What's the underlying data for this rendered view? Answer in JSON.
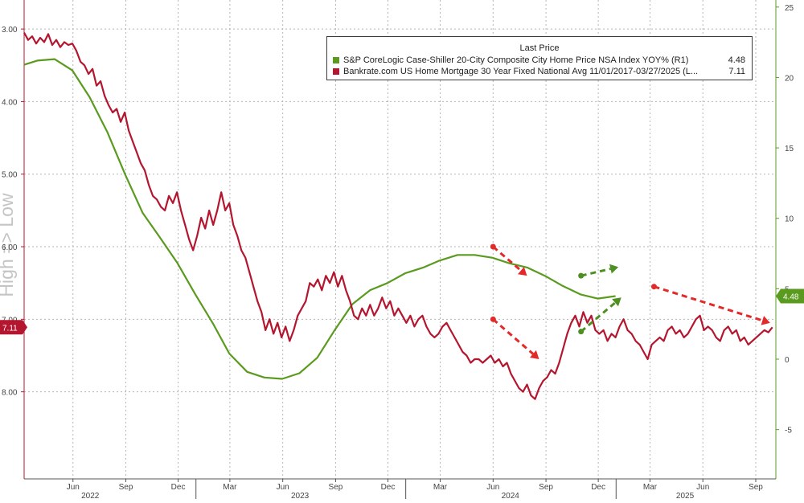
{
  "colors": {
    "green": "#5a9b1f",
    "red": "#b3162e",
    "axis_right": "#5a9b1f",
    "axis_left": "#b3162e",
    "grid": "#b5b5b5",
    "arrow_red": "#e32a2a",
    "arrow_green": "#4e8f22"
  },
  "watermark": "High => Low",
  "legend": {
    "header": "Last Price",
    "items": [
      {
        "name": "S&P CoreLogic Case-Shiller 20-City Composite City Home Price NSA Index YOY%  (R1)",
        "value": "4.48"
      },
      {
        "name": "Bankrate.com US Home Mortgage 30 Year Fixed National Avg 11/01/2017-03/27/2025    (L...",
        "value": "7.11"
      }
    ]
  },
  "chart_data": {
    "type": "line",
    "x_ticks": [
      {
        "date": "2022-06-01",
        "label": "Jun"
      },
      {
        "date": "2022-09-01",
        "label": "Sep"
      },
      {
        "date": "2022-12-01",
        "label": "Dec"
      },
      {
        "date": "2023-03-01",
        "label": "Mar"
      },
      {
        "date": "2023-06-01",
        "label": "Jun"
      },
      {
        "date": "2023-09-01",
        "label": "Sep"
      },
      {
        "date": "2023-12-01",
        "label": "Dec"
      },
      {
        "date": "2024-03-01",
        "label": "Mar"
      },
      {
        "date": "2024-06-01",
        "label": "Jun"
      },
      {
        "date": "2024-09-01",
        "label": "Sep"
      },
      {
        "date": "2024-12-01",
        "label": "Dec"
      },
      {
        "date": "2025-03-01",
        "label": "Mar"
      },
      {
        "date": "2025-06-01",
        "label": "Jun"
      },
      {
        "date": "2025-09-01",
        "label": "Sep"
      }
    ],
    "year_labels": [
      {
        "date": "2022-07-01",
        "label": "2022"
      },
      {
        "date": "2023-07-01",
        "label": "2023"
      },
      {
        "date": "2024-07-01",
        "label": "2024"
      },
      {
        "date": "2025-05-01",
        "label": "2025"
      }
    ],
    "year_separators": [
      "2023-01-01",
      "2024-01-01",
      "2025-01-01"
    ],
    "xlim": [
      "2022-03-08",
      "2025-10-06"
    ],
    "left_axis": {
      "inverted": true,
      "ylim": [
        2.6,
        9.2
      ],
      "ticks": [
        3,
        4,
        5,
        6,
        7,
        8
      ],
      "tick_labels": [
        "3.00",
        "4.00",
        "5.00",
        "6.00",
        "7.00",
        "8.00"
      ],
      "last_value_label": "7.11",
      "last_value": 7.11
    },
    "right_axis": {
      "ylim": [
        -8.5,
        25.5
      ],
      "ticks": [
        -5,
        0,
        5,
        10,
        15,
        20,
        25
      ],
      "tick_labels": [
        "-5",
        "0",
        "5",
        "10",
        "15",
        "20",
        "25"
      ],
      "last_value_label": "4.48",
      "last_value": 4.48
    },
    "series": [
      {
        "name": "S&P CoreLogic Case-Shiller 20-City Composite City Home Price NSA Index YOY%",
        "axis": "right",
        "color": "#5a9b1f",
        "points": [
          [
            "2022-03-08",
            20.9
          ],
          [
            "2022-03-31",
            21.2
          ],
          [
            "2022-04-30",
            21.3
          ],
          [
            "2022-05-31",
            20.5
          ],
          [
            "2022-06-30",
            18.6
          ],
          [
            "2022-07-31",
            16.1
          ],
          [
            "2022-08-31",
            13.1
          ],
          [
            "2022-09-30",
            10.4
          ],
          [
            "2022-10-31",
            8.6
          ],
          [
            "2022-11-30",
            6.8
          ],
          [
            "2022-12-31",
            4.6
          ],
          [
            "2023-01-31",
            2.5
          ],
          [
            "2023-02-28",
            0.4
          ],
          [
            "2023-03-31",
            -0.9
          ],
          [
            "2023-04-30",
            -1.3
          ],
          [
            "2023-05-31",
            -1.4
          ],
          [
            "2023-06-30",
            -1.0
          ],
          [
            "2023-07-31",
            0.1
          ],
          [
            "2023-08-31",
            2.1
          ],
          [
            "2023-09-30",
            3.9
          ],
          [
            "2023-10-31",
            4.9
          ],
          [
            "2023-11-30",
            5.4
          ],
          [
            "2023-12-31",
            6.1
          ],
          [
            "2024-01-31",
            6.5
          ],
          [
            "2024-02-29",
            7.0
          ],
          [
            "2024-03-31",
            7.4
          ],
          [
            "2024-04-30",
            7.4
          ],
          [
            "2024-05-31",
            7.2
          ],
          [
            "2024-06-30",
            6.8
          ],
          [
            "2024-07-31",
            6.5
          ],
          [
            "2024-08-31",
            5.9
          ],
          [
            "2024-09-30",
            5.2
          ],
          [
            "2024-10-31",
            4.6
          ],
          [
            "2024-11-30",
            4.3
          ],
          [
            "2024-12-31",
            4.48
          ]
        ]
      },
      {
        "name": "Bankrate.com US Home Mortgage 30 Year Fixed National Avg",
        "axis": "left",
        "color": "#b3162e",
        "points": [
          [
            "2022-03-08",
            3.05
          ],
          [
            "2022-03-15",
            3.15
          ],
          [
            "2022-03-22",
            3.1
          ],
          [
            "2022-03-29",
            3.2
          ],
          [
            "2022-04-05",
            3.12
          ],
          [
            "2022-04-12",
            3.18
          ],
          [
            "2022-04-19",
            3.07
          ],
          [
            "2022-04-26",
            3.22
          ],
          [
            "2022-05-03",
            3.15
          ],
          [
            "2022-05-10",
            3.25
          ],
          [
            "2022-05-17",
            3.18
          ],
          [
            "2022-05-24",
            3.22
          ],
          [
            "2022-05-31",
            3.2
          ],
          [
            "2022-06-07",
            3.3
          ],
          [
            "2022-06-14",
            3.45
          ],
          [
            "2022-06-21",
            3.5
          ],
          [
            "2022-06-28",
            3.62
          ],
          [
            "2022-07-05",
            3.55
          ],
          [
            "2022-07-12",
            3.78
          ],
          [
            "2022-07-19",
            3.72
          ],
          [
            "2022-07-26",
            3.92
          ],
          [
            "2022-08-02",
            4.05
          ],
          [
            "2022-08-09",
            4.15
          ],
          [
            "2022-08-16",
            4.1
          ],
          [
            "2022-08-23",
            4.28
          ],
          [
            "2022-08-30",
            4.15
          ],
          [
            "2022-09-06",
            4.4
          ],
          [
            "2022-09-13",
            4.55
          ],
          [
            "2022-09-20",
            4.7
          ],
          [
            "2022-09-27",
            4.85
          ],
          [
            "2022-10-04",
            4.95
          ],
          [
            "2022-10-11",
            5.15
          ],
          [
            "2022-10-18",
            5.3
          ],
          [
            "2022-10-25",
            5.35
          ],
          [
            "2022-11-01",
            5.45
          ],
          [
            "2022-11-08",
            5.5
          ],
          [
            "2022-11-15",
            5.3
          ],
          [
            "2022-11-22",
            5.4
          ],
          [
            "2022-11-29",
            5.25
          ],
          [
            "2022-12-06",
            5.5
          ],
          [
            "2022-12-13",
            5.7
          ],
          [
            "2022-12-20",
            5.9
          ],
          [
            "2022-12-27",
            6.05
          ],
          [
            "2023-01-03",
            5.85
          ],
          [
            "2023-01-10",
            5.6
          ],
          [
            "2023-01-17",
            5.75
          ],
          [
            "2023-01-24",
            5.5
          ],
          [
            "2023-01-31",
            5.7
          ],
          [
            "2023-02-07",
            5.5
          ],
          [
            "2023-02-14",
            5.25
          ],
          [
            "2023-02-21",
            5.5
          ],
          [
            "2023-02-28",
            5.4
          ],
          [
            "2023-03-07",
            5.7
          ],
          [
            "2023-03-14",
            5.85
          ],
          [
            "2023-03-21",
            6.05
          ],
          [
            "2023-03-28",
            6.15
          ],
          [
            "2023-04-04",
            6.35
          ],
          [
            "2023-04-11",
            6.55
          ],
          [
            "2023-04-18",
            6.75
          ],
          [
            "2023-04-25",
            6.9
          ],
          [
            "2023-05-02",
            7.15
          ],
          [
            "2023-05-09",
            7.0
          ],
          [
            "2023-05-16",
            7.2
          ],
          [
            "2023-05-23",
            7.05
          ],
          [
            "2023-05-30",
            7.25
          ],
          [
            "2023-06-06",
            7.1
          ],
          [
            "2023-06-13",
            7.3
          ],
          [
            "2023-06-20",
            7.15
          ],
          [
            "2023-06-27",
            6.95
          ],
          [
            "2023-07-04",
            6.85
          ],
          [
            "2023-07-11",
            6.75
          ],
          [
            "2023-07-18",
            6.5
          ],
          [
            "2023-07-25",
            6.55
          ],
          [
            "2023-08-01",
            6.45
          ],
          [
            "2023-08-08",
            6.6
          ],
          [
            "2023-08-15",
            6.4
          ],
          [
            "2023-08-22",
            6.5
          ],
          [
            "2023-08-29",
            6.35
          ],
          [
            "2023-09-05",
            6.55
          ],
          [
            "2023-09-12",
            6.4
          ],
          [
            "2023-09-19",
            6.6
          ],
          [
            "2023-09-26",
            6.75
          ],
          [
            "2023-10-03",
            6.95
          ],
          [
            "2023-10-10",
            7.0
          ],
          [
            "2023-10-17",
            6.85
          ],
          [
            "2023-10-24",
            6.95
          ],
          [
            "2023-10-31",
            6.8
          ],
          [
            "2023-11-07",
            6.95
          ],
          [
            "2023-11-14",
            6.85
          ],
          [
            "2023-11-21",
            6.7
          ],
          [
            "2023-11-28",
            6.85
          ],
          [
            "2023-12-05",
            6.75
          ],
          [
            "2023-12-12",
            6.95
          ],
          [
            "2023-12-19",
            6.85
          ],
          [
            "2023-12-26",
            6.95
          ],
          [
            "2024-01-02",
            7.05
          ],
          [
            "2024-01-09",
            6.95
          ],
          [
            "2024-01-16",
            7.1
          ],
          [
            "2024-01-23",
            7.0
          ],
          [
            "2024-01-30",
            6.95
          ],
          [
            "2024-02-06",
            7.1
          ],
          [
            "2024-02-13",
            7.2
          ],
          [
            "2024-02-20",
            7.25
          ],
          [
            "2024-02-27",
            7.2
          ],
          [
            "2024-03-05",
            7.1
          ],
          [
            "2024-03-12",
            7.05
          ],
          [
            "2024-03-19",
            7.15
          ],
          [
            "2024-03-26",
            7.25
          ],
          [
            "2024-04-02",
            7.35
          ],
          [
            "2024-04-09",
            7.45
          ],
          [
            "2024-04-16",
            7.5
          ],
          [
            "2024-04-23",
            7.6
          ],
          [
            "2024-04-30",
            7.55
          ],
          [
            "2024-05-07",
            7.55
          ],
          [
            "2024-05-14",
            7.6
          ],
          [
            "2024-05-21",
            7.55
          ],
          [
            "2024-05-28",
            7.5
          ],
          [
            "2024-06-04",
            7.6
          ],
          [
            "2024-06-11",
            7.55
          ],
          [
            "2024-06-18",
            7.65
          ],
          [
            "2024-06-25",
            7.6
          ],
          [
            "2024-07-02",
            7.75
          ],
          [
            "2024-07-09",
            7.85
          ],
          [
            "2024-07-16",
            7.95
          ],
          [
            "2024-07-23",
            8.0
          ],
          [
            "2024-07-30",
            7.9
          ],
          [
            "2024-08-06",
            8.05
          ],
          [
            "2024-08-13",
            8.1
          ],
          [
            "2024-08-20",
            7.95
          ],
          [
            "2024-08-27",
            7.85
          ],
          [
            "2024-09-03",
            7.8
          ],
          [
            "2024-09-10",
            7.7
          ],
          [
            "2024-09-17",
            7.75
          ],
          [
            "2024-09-24",
            7.6
          ],
          [
            "2024-10-01",
            7.4
          ],
          [
            "2024-10-08",
            7.2
          ],
          [
            "2024-10-15",
            7.05
          ],
          [
            "2024-10-22",
            6.95
          ],
          [
            "2024-10-29",
            7.1
          ],
          [
            "2024-11-05",
            6.9
          ],
          [
            "2024-11-12",
            7.05
          ],
          [
            "2024-11-19",
            6.95
          ],
          [
            "2024-11-26",
            7.15
          ],
          [
            "2024-12-03",
            7.2
          ],
          [
            "2024-12-10",
            7.15
          ],
          [
            "2024-12-17",
            7.3
          ],
          [
            "2024-12-24",
            7.2
          ],
          [
            "2024-12-31",
            7.25
          ],
          [
            "2025-01-07",
            7.1
          ],
          [
            "2025-01-14",
            7.0
          ],
          [
            "2025-01-21",
            7.15
          ],
          [
            "2025-01-28",
            7.2
          ],
          [
            "2025-02-04",
            7.3
          ],
          [
            "2025-02-11",
            7.35
          ],
          [
            "2025-02-18",
            7.45
          ],
          [
            "2025-02-25",
            7.55
          ],
          [
            "2025-03-04",
            7.35
          ],
          [
            "2025-03-11",
            7.3
          ],
          [
            "2025-03-18",
            7.25
          ],
          [
            "2025-03-25",
            7.3
          ],
          [
            "2025-04-01",
            7.15
          ],
          [
            "2025-04-08",
            7.1
          ],
          [
            "2025-04-15",
            7.2
          ],
          [
            "2025-04-22",
            7.15
          ],
          [
            "2025-04-29",
            7.25
          ],
          [
            "2025-05-06",
            7.2
          ],
          [
            "2025-05-13",
            7.1
          ],
          [
            "2025-05-20",
            7.0
          ],
          [
            "2025-05-27",
            6.95
          ],
          [
            "2025-06-03",
            7.15
          ],
          [
            "2025-06-10",
            7.1
          ],
          [
            "2025-06-17",
            7.15
          ],
          [
            "2025-06-24",
            7.25
          ],
          [
            "2025-07-01",
            7.3
          ],
          [
            "2025-07-08",
            7.15
          ],
          [
            "2025-07-15",
            7.1
          ],
          [
            "2025-07-22",
            7.2
          ],
          [
            "2025-07-29",
            7.15
          ],
          [
            "2025-08-05",
            7.3
          ],
          [
            "2025-08-12",
            7.25
          ],
          [
            "2025-08-19",
            7.35
          ],
          [
            "2025-08-26",
            7.3
          ],
          [
            "2025-09-02",
            7.25
          ],
          [
            "2025-09-09",
            7.2
          ],
          [
            "2025-09-16",
            7.15
          ],
          [
            "2025-09-23",
            7.18
          ],
          [
            "2025-09-30",
            7.11
          ]
        ]
      }
    ],
    "annotations": [
      {
        "kind": "dashed-arrow",
        "color": "red",
        "axis": "left",
        "from": [
          "2024-06-01",
          6.0
        ],
        "to": [
          "2024-07-30",
          6.4
        ]
      },
      {
        "kind": "dashed-arrow",
        "color": "red",
        "axis": "left",
        "from": [
          "2024-06-01",
          7.0
        ],
        "to": [
          "2024-08-20",
          7.55
        ]
      },
      {
        "kind": "dashed-arrow",
        "color": "green",
        "axis": "left",
        "from": [
          "2024-11-01",
          6.4
        ],
        "to": [
          "2025-01-05",
          6.28
        ]
      },
      {
        "kind": "dashed-arrow",
        "color": "green",
        "axis": "left",
        "from": [
          "2024-11-01",
          7.17
        ],
        "to": [
          "2025-01-10",
          6.7
        ]
      },
      {
        "kind": "dashed-arrow",
        "color": "red",
        "axis": "left",
        "from": [
          "2025-03-08",
          6.55
        ],
        "to": [
          "2025-09-26",
          7.05
        ]
      }
    ]
  }
}
